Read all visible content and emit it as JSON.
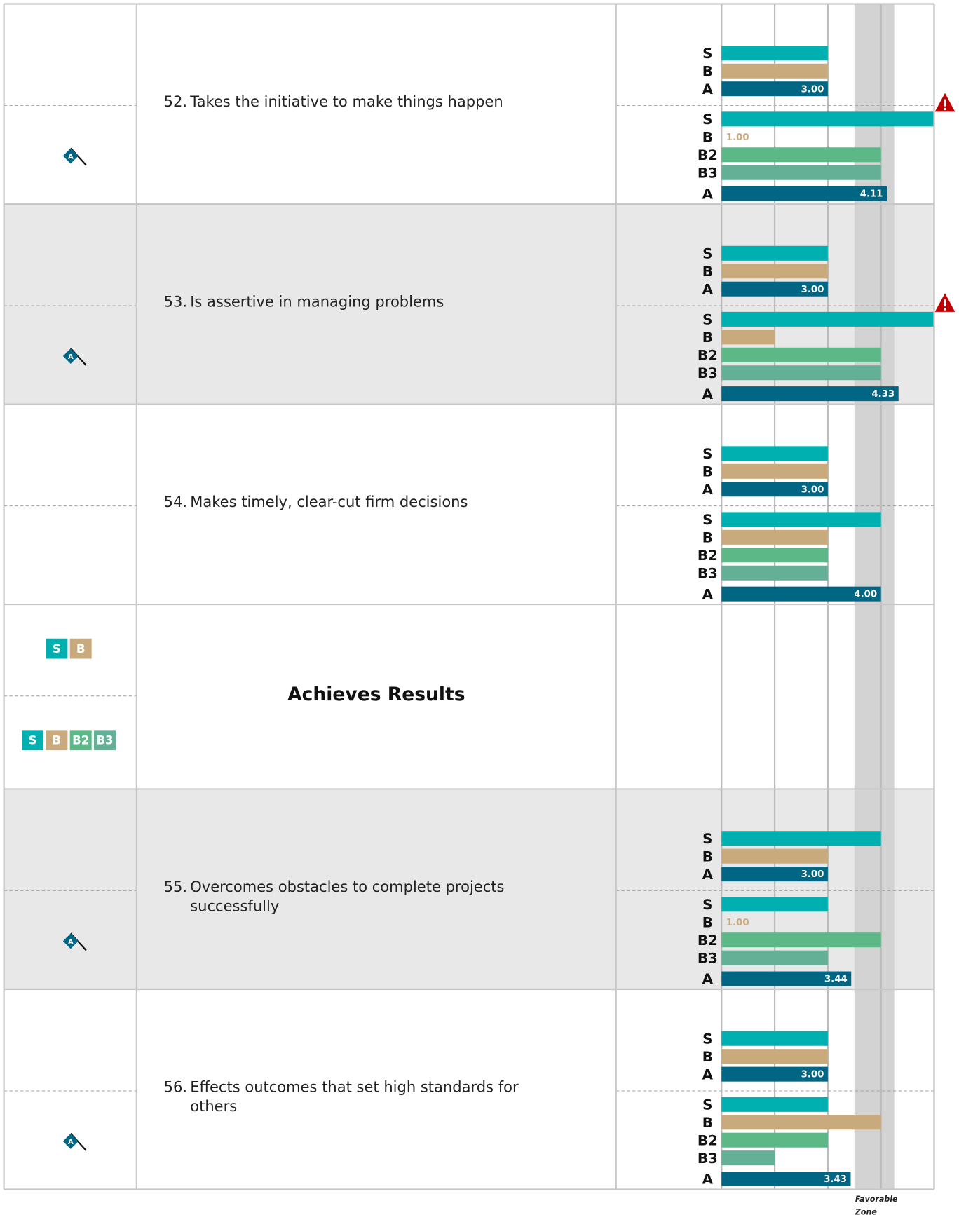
{
  "scale": {
    "xlim": [
      1,
      5
    ],
    "xticks": [
      1,
      2,
      3,
      4,
      5
    ]
  },
  "favorable_zone": {
    "label": [
      "Favorable",
      "Zone"
    ],
    "range": [
      3.5,
      4.25
    ]
  },
  "colors": {
    "S": "#00b0b0",
    "B": "#c8aa7c",
    "B2": "#5cb887",
    "B3": "#64b096",
    "A": "#006684"
  },
  "rows": [
    {
      "kind": "item",
      "number": "52.",
      "text": [
        "Takes the initiative to make things happen"
      ],
      "shaded": false,
      "flag": "A",
      "warning": true,
      "groups": [
        {
          "labels": [
            "S",
            "B",
            "A"
          ],
          "values": [
            3,
            3,
            3
          ],
          "value_labels": [
            null,
            null,
            "3.00"
          ]
        },
        {
          "labels": [
            "S",
            "B",
            "B2",
            "B3",
            "A"
          ],
          "values": [
            5,
            1,
            4,
            4,
            4.11
          ],
          "value_labels": [
            null,
            "1.00",
            null,
            null,
            "4.11"
          ]
        }
      ]
    },
    {
      "kind": "item",
      "number": "53.",
      "text": [
        "Is assertive in managing problems"
      ],
      "shaded": true,
      "flag": "A",
      "warning": true,
      "groups": [
        {
          "labels": [
            "S",
            "B",
            "A"
          ],
          "values": [
            3,
            3,
            3
          ],
          "value_labels": [
            null,
            null,
            "3.00"
          ]
        },
        {
          "labels": [
            "S",
            "B",
            "B2",
            "B3",
            "A"
          ],
          "values": [
            5,
            2,
            4,
            4,
            4.33
          ],
          "value_labels": [
            null,
            null,
            null,
            null,
            "4.33"
          ]
        }
      ]
    },
    {
      "kind": "item",
      "number": "54.",
      "text": [
        "Makes timely, clear-cut firm decisions"
      ],
      "shaded": false,
      "flag": null,
      "warning": false,
      "groups": [
        {
          "labels": [
            "S",
            "B",
            "A"
          ],
          "values": [
            3,
            3,
            3
          ],
          "value_labels": [
            null,
            null,
            "3.00"
          ]
        },
        {
          "labels": [
            "S",
            "B",
            "B2",
            "B3",
            "A"
          ],
          "values": [
            4,
            3,
            3,
            3,
            4
          ],
          "value_labels": [
            null,
            null,
            null,
            null,
            "4.00"
          ]
        }
      ]
    },
    {
      "kind": "section",
      "title": "Achieves Results",
      "legend": [
        [
          "S",
          "B"
        ],
        [
          "S",
          "B",
          "B2",
          "B3"
        ]
      ]
    },
    {
      "kind": "item",
      "number": "55.",
      "text": [
        "Overcomes obstacles to complete projects",
        "successfully"
      ],
      "shaded": true,
      "flag": "A",
      "warning": false,
      "groups": [
        {
          "labels": [
            "S",
            "B",
            "A"
          ],
          "values": [
            4,
            3,
            3
          ],
          "value_labels": [
            null,
            null,
            "3.00"
          ]
        },
        {
          "labels": [
            "S",
            "B",
            "B2",
            "B3",
            "A"
          ],
          "values": [
            3,
            1,
            4,
            3,
            3.44
          ],
          "value_labels": [
            null,
            "1.00",
            null,
            null,
            "3.44"
          ]
        }
      ]
    },
    {
      "kind": "item",
      "number": "56.",
      "text": [
        "Effects outcomes that set high standards for",
        "others"
      ],
      "shaded": false,
      "flag": "A",
      "warning": false,
      "groups": [
        {
          "labels": [
            "S",
            "B",
            "A"
          ],
          "values": [
            3,
            3,
            3
          ],
          "value_labels": [
            null,
            null,
            "3.00"
          ]
        },
        {
          "labels": [
            "S",
            "B",
            "B2",
            "B3",
            "A"
          ],
          "values": [
            3,
            4,
            3,
            2,
            3.43
          ],
          "value_labels": [
            null,
            null,
            null,
            null,
            "3.43"
          ]
        }
      ]
    }
  ]
}
